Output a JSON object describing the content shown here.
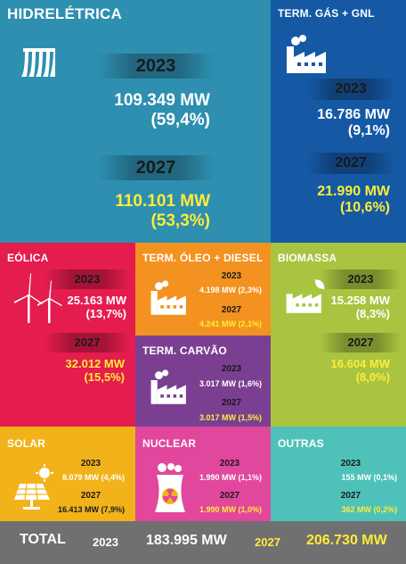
{
  "hidro": {
    "title": "HIDRELÉTRICA",
    "y1": "2023",
    "v1": "109.349 MW",
    "p1": "(59,4%)",
    "y2": "2027",
    "v2": "110.101 MW",
    "p2": "(53,3%)"
  },
  "gas": {
    "title": "TERM. GÁS + GNL",
    "y1": "2023",
    "v1": "16.786 MW",
    "p1": "(9,1%)",
    "y2": "2027",
    "v2": "21.990 MW",
    "p2": "(10,6%)"
  },
  "eolica": {
    "title": "EÓLICA",
    "y1": "2023",
    "v1": "25.163 MW",
    "p1": "(13,7%)",
    "y2": "2027",
    "v2": "32.012 MW",
    "p2": "(15,5%)"
  },
  "oleo": {
    "title": "TERM. ÓLEO + DIESEL",
    "y1": "2023",
    "v1": "4.198 MW (2,3%)",
    "y2": "2027",
    "v2": "4.241 MW (2,1%)"
  },
  "biomassa": {
    "title": "BIOMASSA",
    "y1": "2023",
    "v1": "15.258 MW",
    "p1": "(8,3%)",
    "y2": "2027",
    "v2": "16.604 MW",
    "p2": "(8,0%)"
  },
  "carvao": {
    "title": "TERM. CARVÃO",
    "y1": "2023",
    "v1": "3.017 MW (1,6%)",
    "y2": "2027",
    "v2": "3.017 MW (1,5%)"
  },
  "solar": {
    "title": "SOLAR",
    "y1": "2023",
    "v1": "8.079 MW (4,4%)",
    "y2": "2027",
    "v2": "16.413 MW (7,9%)"
  },
  "nuclear": {
    "title": "NUCLEAR",
    "y1": "2023",
    "v1": "1.990 MW (1,1%)",
    "y2": "2027",
    "v2": "1.990 MW (1,0%)"
  },
  "outras": {
    "title": "OUTRAS",
    "y1": "2023",
    "v1": "155 MW (0,1%)",
    "y2": "2027",
    "v2": "362 MW (0,2%)"
  },
  "total": {
    "label": "TOTAL",
    "y1": "2023",
    "v1": "183.995 MW",
    "y2": "2027",
    "v2": "206.730 MW"
  },
  "colors": {
    "hidro": "#2e8fb0",
    "gas": "#1559a5",
    "eolica": "#e51c4e",
    "oleo": "#f39220",
    "biomassa": "#a9c440",
    "carvao": "#7b3f91",
    "solar": "#f2b21a",
    "nuclear": "#e1479c",
    "outras": "#4ec2b8",
    "total": "#707070",
    "highlight": "#ffec3a"
  }
}
